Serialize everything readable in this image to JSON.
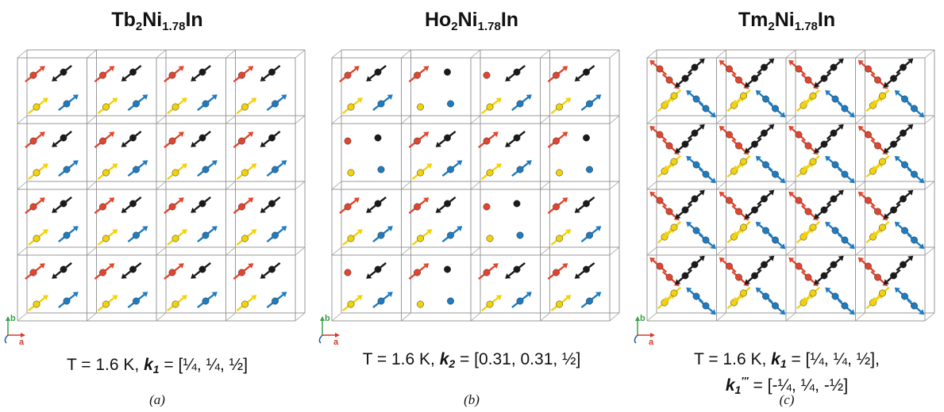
{
  "colors": {
    "red": "#e0452f",
    "yellow": "#f2d20a",
    "blue": "#1e7bc0",
    "black": "#1a1a1a",
    "cell": "#9a9a9a",
    "axis_a": "#d83a2a",
    "axis_b": "#3aa04a",
    "axis_c": "#1a56b0"
  },
  "axes": {
    "a": "a",
    "b": "b"
  },
  "panels": [
    {
      "id": "a",
      "title": {
        "element": "Tb",
        "sub1": "2",
        "mid": "Ni",
        "sub2": "1.78",
        "tail": "In"
      },
      "caption": {
        "line1_prefix": "T = 1.6 K, ",
        "k": "k",
        "k_sub": "1",
        "line1_value": " = [¼, ¼, ½]"
      },
      "label": "(a)",
      "pattern": "collinear"
    },
    {
      "id": "b",
      "title": {
        "element": "Ho",
        "sub1": "2",
        "mid": "Ni",
        "sub2": "1.78",
        "tail": "In"
      },
      "caption": {
        "line1_prefix": "T = 1.6 K, ",
        "k": "k",
        "k_sub": "2",
        "line1_value": " = [0.31, 0.31, ½]"
      },
      "label": "(b)",
      "pattern": "modulated"
    },
    {
      "id": "c",
      "title": {
        "element": "Tm",
        "sub1": "2",
        "mid": "Ni",
        "sub2": "1.78",
        "tail": "In"
      },
      "caption": {
        "line1_prefix": "T = 1.6 K, ",
        "k": "k",
        "k_sub": "1",
        "line1_value": " = [¼, ¼, ½],",
        "line2_k": "k",
        "line2_sub": "1",
        "line2_sup": "′′′",
        "line2_value": " = [-¼, ¼, -½]"
      },
      "label": "(c)",
      "pattern": "noncollinear"
    }
  ]
}
